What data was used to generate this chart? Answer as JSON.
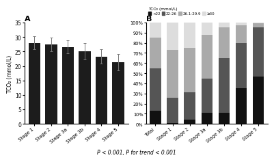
{
  "panel_a": {
    "title": "A",
    "ylabel": "TCO₂ (mmol/L)",
    "categories": [
      "Stage 1",
      "Stage 2",
      "Stage 3a",
      "Stage 3b",
      "Stage 4",
      "Stage 5"
    ],
    "values": [
      28.0,
      27.5,
      26.6,
      25.0,
      23.3,
      21.3
    ],
    "errors": [
      2.3,
      2.4,
      2.2,
      2.8,
      2.5,
      2.8
    ],
    "bar_color": "#1c1c1c",
    "ylim": [
      0,
      35
    ],
    "yticks": [
      0,
      5,
      10,
      15,
      20,
      25,
      30,
      35
    ]
  },
  "panel_b": {
    "title": "B",
    "legend_title": "TCO₂ (mmol/L)",
    "legend_labels": [
      "<22",
      "22-26",
      "26.1-29.9",
      "≥30"
    ],
    "legend_colors": [
      "#111111",
      "#555555",
      "#aaaaaa",
      "#dddddd"
    ],
    "categories": [
      "Total",
      "Stage 1",
      "Stage 2",
      "Stage 3a",
      "Stage 3b",
      "Stage 4",
      "Stage 5"
    ],
    "data_lt22": [
      13,
      1,
      4,
      11,
      11,
      35,
      47
    ],
    "data_22_26": [
      42,
      25,
      27,
      34,
      54,
      45,
      48
    ],
    "data_26_30": [
      30,
      47,
      44,
      43,
      30,
      17,
      4
    ],
    "data_ge30": [
      15,
      27,
      25,
      12,
      5,
      3,
      1
    ],
    "ylim": [
      0,
      100
    ],
    "ytick_labels": [
      "0%",
      "10%",
      "20%",
      "30%",
      "40%",
      "50%",
      "60%",
      "70%",
      "80%",
      "90%",
      "100%"
    ]
  },
  "footer": "P < 0.001, P for trend < 0.001",
  "background_color": "#ffffff"
}
